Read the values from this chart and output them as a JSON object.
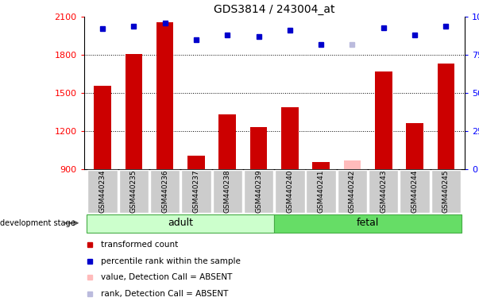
{
  "title": "GDS3814 / 243004_at",
  "samples": [
    "GSM440234",
    "GSM440235",
    "GSM440236",
    "GSM440237",
    "GSM440238",
    "GSM440239",
    "GSM440240",
    "GSM440241",
    "GSM440242",
    "GSM440243",
    "GSM440244",
    "GSM440245"
  ],
  "bar_values": [
    1560,
    1810,
    2060,
    1010,
    1330,
    1230,
    1390,
    960,
    970,
    1670,
    1265,
    1730
  ],
  "bar_absent": [
    false,
    false,
    false,
    false,
    false,
    false,
    false,
    false,
    true,
    false,
    false,
    false
  ],
  "rank_values": [
    92,
    94,
    96,
    85,
    88,
    87,
    91,
    82,
    82,
    93,
    88,
    94
  ],
  "rank_absent": [
    false,
    false,
    false,
    false,
    false,
    false,
    false,
    false,
    true,
    false,
    false,
    false
  ],
  "ylim_left": [
    900,
    2100
  ],
  "ylim_right": [
    0,
    100
  ],
  "yticks_left": [
    900,
    1200,
    1500,
    1800,
    2100
  ],
  "yticks_right": [
    0,
    25,
    50,
    75,
    100
  ],
  "bar_color": "#cc0000",
  "bar_absent_color": "#ffbbbb",
  "rank_color": "#0000cc",
  "rank_absent_color": "#bbbbdd",
  "group_adult_indices": [
    0,
    1,
    2,
    3,
    4,
    5
  ],
  "group_fetal_indices": [
    6,
    7,
    8,
    9,
    10,
    11
  ],
  "group_adult_label": "adult",
  "group_fetal_label": "fetal",
  "group_adult_color": "#ccffcc",
  "group_fetal_color": "#66dd66",
  "group_border_color": "#44aa44",
  "dev_stage_label": "development stage",
  "legend_items": [
    {
      "label": "transformed count",
      "color": "#cc0000"
    },
    {
      "label": "percentile rank within the sample",
      "color": "#0000cc"
    },
    {
      "label": "value, Detection Call = ABSENT",
      "color": "#ffbbbb"
    },
    {
      "label": "rank, Detection Call = ABSENT",
      "color": "#bbbbdd"
    }
  ],
  "tick_label_bg": "#cccccc",
  "right_axis_pct_suffix": "%"
}
